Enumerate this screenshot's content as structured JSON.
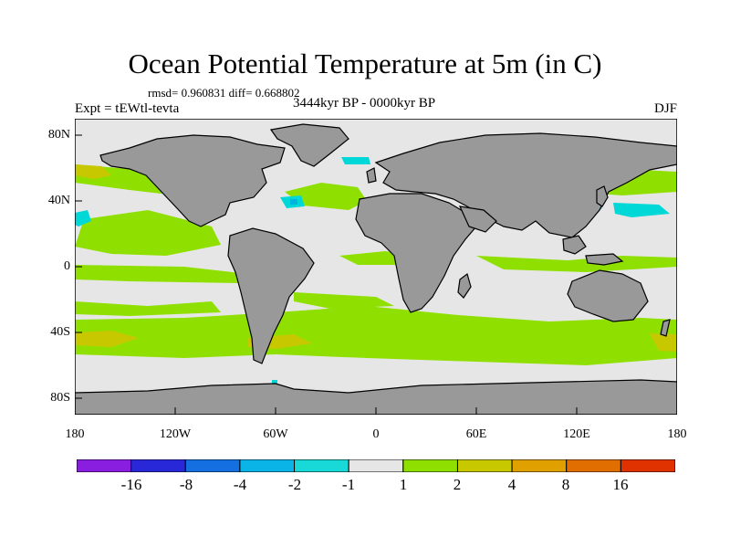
{
  "title": "Ocean Potential Temperature at 5m (in C)",
  "stats": "rmsd= 0.960831  diff= 0.668802",
  "experiment": "Expt = tEWtl-tevta",
  "period": "3444kyr BP - 0000kyr BP",
  "season": "DJF",
  "map": {
    "lat_ticks": [
      "80N",
      "40N",
      "0",
      "40S",
      "80S"
    ],
    "lon_ticks": [
      "180",
      "120W",
      "60W",
      "0",
      "60E",
      "120E",
      "180"
    ],
    "colors": {
      "ocean_background": "#e6e6e6",
      "land": "#999999",
      "warm_1_2": "#8fe000",
      "warm_2_4": "#c8c800",
      "cool_neg2_neg1": "#00d8d8",
      "cool_neg4_neg2": "#00b4e0"
    }
  },
  "colorbar": {
    "labels": [
      "-16",
      "-8",
      "-4",
      "-2",
      "-1",
      "1",
      "2",
      "4",
      "8",
      "16"
    ],
    "colors": [
      "#8a1ee0",
      "#2828d8",
      "#1470e0",
      "#0ab4e6",
      "#18d8d8",
      "#e6e6e6",
      "#8fe000",
      "#c8c800",
      "#e0a000",
      "#e06e00",
      "#e03200"
    ]
  }
}
